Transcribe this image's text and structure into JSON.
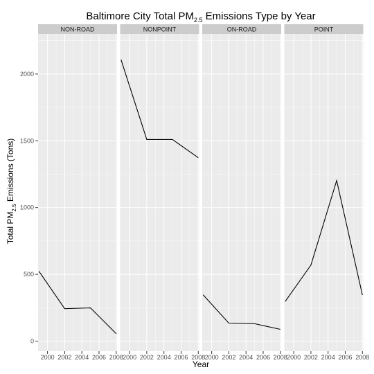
{
  "chart_data": {
    "type": "line",
    "title": {
      "prefix": "Baltimore City Total ",
      "pm": "PM",
      "sub": "2.5",
      "suffix": " Emissions Type by Year"
    },
    "xlabel": "Year",
    "ylabel": {
      "prefix": "Total ",
      "pm": "PM",
      "sub": "2.5",
      "suffix": " Emissions (Tons)"
    },
    "xlim": [
      1998.9,
      2008.1
    ],
    "ylim": [
      -75,
      2300
    ],
    "x_ticks": [
      2000,
      2002,
      2004,
      2006,
      2008
    ],
    "y_ticks": [
      0,
      500,
      1000,
      1500,
      2000
    ],
    "panels": [
      {
        "name": "NON-ROAD",
        "x": [
          1999,
          2002,
          2005,
          2008
        ],
        "values": [
          522.94,
          242.7,
          248.93,
          55.82
        ]
      },
      {
        "name": "NONPOINT",
        "x": [
          1999,
          2002,
          2005,
          2008
        ],
        "values": [
          2107.63,
          1509.5,
          1509.5,
          1373.21
        ]
      },
      {
        "name": "ON-ROAD",
        "x": [
          1999,
          2002,
          2005,
          2008
        ],
        "values": [
          346.82,
          134.31,
          130.43,
          88.28
        ]
      },
      {
        "name": "POINT",
        "x": [
          1999,
          2002,
          2005,
          2008
        ],
        "values": [
          296.8,
          569.26,
          1202.49,
          344.98
        ]
      }
    ],
    "grid": true,
    "line_color": "#000000",
    "panel_background": "#ebebeb",
    "strip_background": "#cccccc",
    "grid_color": "#ffffff"
  }
}
